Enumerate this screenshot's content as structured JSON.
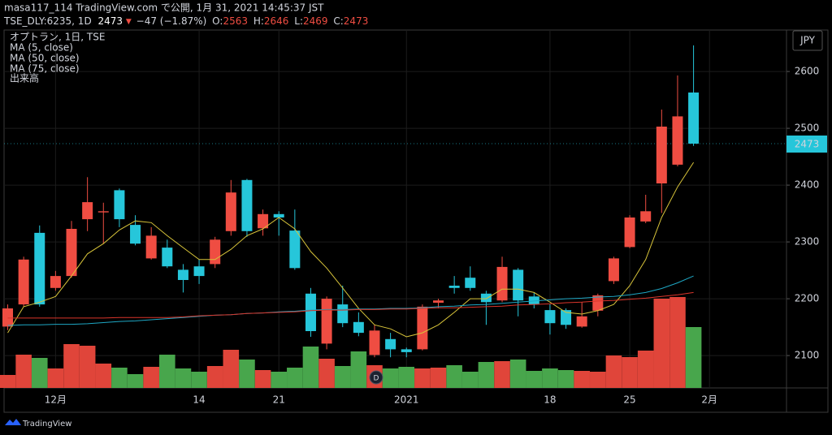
{
  "header": {
    "line1": "masa117_114 TradingView.com で公開, 1月 31, 2021 14:45:37 JST",
    "symbol": "TSE_DLY:6235, 1D",
    "change": "−47 (−1.87%)",
    "ohlc_labels": [
      "O:",
      "H:",
      "L:",
      "C:"
    ]
  },
  "chart_data": {
    "type": "candlestick",
    "title": "オプトラン, 1日, TSE",
    "currency": "JPY",
    "marker_label": "D",
    "brand": "TradingView",
    "categories": [
      null,
      null,
      null,
      "12月",
      null,
      null,
      null,
      null,
      null,
      null,
      null,
      null,
      "14",
      null,
      null,
      null,
      null,
      "21",
      null,
      null,
      null,
      null,
      null,
      null,
      null,
      "2021",
      null,
      null,
      null,
      null,
      null,
      null,
      null,
      null,
      "18",
      null,
      null,
      null,
      null,
      "25",
      null,
      null,
      null,
      null,
      "2月"
    ],
    "open": [
      2151,
      2190,
      2316,
      2219,
      2240,
      2340,
      2352,
      2391,
      2330,
      2271,
      2290,
      2251,
      2257,
      2261,
      2319,
      2409,
      2324,
      2349,
      2320,
      2209,
      2121,
      2190,
      2159,
      2101,
      2129,
      2111,
      2111,
      2193,
      2223,
      2237,
      2209,
      2197,
      2251,
      2204,
      2180,
      2180,
      2151,
      2179,
      2231,
      2291,
      2336,
      2403,
      2436,
      2563,
      null
    ],
    "high": [
      2190,
      2274,
      2329,
      2249,
      2337,
      2414,
      2369,
      2394,
      2347,
      2326,
      2304,
      2261,
      2269,
      2309,
      2409,
      2411,
      2357,
      2354,
      2357,
      2219,
      2204,
      2223,
      2176,
      2154,
      2140,
      2114,
      2190,
      2200,
      2240,
      2257,
      2214,
      2274,
      2254,
      2211,
      2190,
      2183,
      2194,
      2209,
      2274,
      2347,
      2383,
      2533,
      2593,
      2646,
      null
    ],
    "low": [
      2145,
      2186,
      2186,
      2214,
      2237,
      2319,
      2297,
      2326,
      2294,
      2269,
      2254,
      2211,
      2226,
      2254,
      2311,
      2309,
      2311,
      2311,
      2251,
      2133,
      2111,
      2150,
      2134,
      2097,
      2097,
      2097,
      2109,
      2183,
      2209,
      2214,
      2154,
      2194,
      2169,
      2183,
      2137,
      2147,
      2149,
      2169,
      2226,
      2289,
      2333,
      2351,
      2433,
      2469,
      null
    ],
    "close": [
      2183,
      2269,
      2190,
      2240,
      2323,
      2370,
      2354,
      2340,
      2297,
      2311,
      2257,
      2233,
      2240,
      2304,
      2387,
      2319,
      2349,
      2343,
      2254,
      2143,
      2200,
      2157,
      2140,
      2144,
      2111,
      2106,
      2186,
      2197,
      2219,
      2219,
      2194,
      2256,
      2197,
      2190,
      2157,
      2154,
      2169,
      2206,
      2271,
      2343,
      2354,
      2503,
      2521,
      2473,
      null
    ],
    "up_color": "#ef4d42",
    "down_color": "#26c6da",
    "series": [
      {
        "name": "MA (5, close)",
        "color": "#d8c43a",
        "values": [
          2140,
          2186,
          2194,
          2204,
          2240,
          2279,
          2297,
          2321,
          2337,
          2334,
          2311,
          2290,
          2269,
          2269,
          2287,
          2311,
          2323,
          2343,
          2323,
          2283,
          2254,
          2219,
          2183,
          2154,
          2147,
          2133,
          2140,
          2154,
          2176,
          2200,
          2200,
          2217,
          2217,
          2211,
          2194,
          2176,
          2173,
          2179,
          2190,
          2223,
          2269,
          2343,
          2397,
          2440,
          null
        ]
      },
      {
        "name": "MA (50, close)",
        "color": "#1ea7c4",
        "values": [
          2153,
          2154,
          2154,
          2155,
          2155,
          2156,
          2158,
          2160,
          2161,
          2163,
          2165,
          2167,
          2169,
          2171,
          2172,
          2174,
          2175,
          2177,
          2178,
          2180,
          2181,
          2181,
          2182,
          2182,
          2183,
          2183,
          2184,
          2186,
          2187,
          2189,
          2190,
          2192,
          2194,
          2196,
          2198,
          2200,
          2201,
          2203,
          2204,
          2207,
          2211,
          2218,
          2228,
          2240,
          null
        ]
      },
      {
        "name": "MA (75, close)",
        "color": "#d9352b",
        "values": [
          2166,
          2166,
          2166,
          2166,
          2166,
          2166,
          2166,
          2167,
          2167,
          2167,
          2167,
          2168,
          2170,
          2171,
          2172,
          2174,
          2175,
          2176,
          2177,
          2179,
          2180,
          2180,
          2181,
          2181,
          2182,
          2182,
          2183,
          2184,
          2184,
          2185,
          2186,
          2187,
          2189,
          2190,
          2191,
          2193,
          2194,
          2196,
          2197,
          2199,
          2201,
          2204,
          2207,
          2211,
          null
        ]
      }
    ],
    "volume": {
      "name": "出来高",
      "up_color": "#e0453a",
      "down_color": "#48a64c",
      "values": [
        16,
        41,
        37,
        24,
        54,
        52,
        30,
        25,
        17,
        26,
        41,
        24,
        20,
        27,
        47,
        35,
        22,
        20,
        25,
        51,
        36,
        27,
        45,
        28,
        24,
        26,
        24,
        25,
        28,
        20,
        32,
        33,
        35,
        21,
        24,
        22,
        21,
        20,
        40,
        38,
        46,
        110,
        112,
        75,
        null
      ]
    },
    "ylim": [
      2043,
      2673
    ],
    "yticks": [
      2100,
      2200,
      2300,
      2400,
      2500,
      2600
    ],
    "grid": true
  }
}
